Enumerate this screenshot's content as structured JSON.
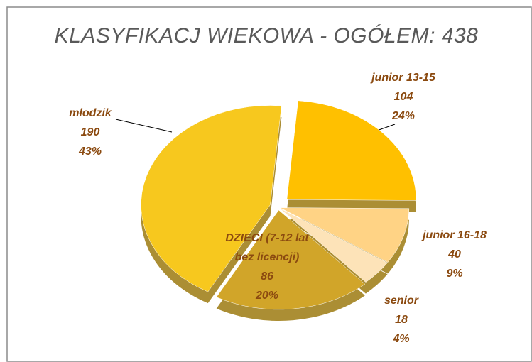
{
  "chart_data": {
    "type": "pie",
    "title": "KLASYFIKACJ WIEKOWA - OGÓŁEM: 438",
    "categories": [
      "junior 13-15",
      "junior 16-18",
      "senior",
      "DZIECI (7-12 lat bez licencji)",
      "młodzik"
    ],
    "values": [
      104,
      40,
      18,
      86,
      190
    ],
    "percent_labels": [
      "24%",
      "9%",
      "4%",
      "20%",
      "43%"
    ],
    "colors": [
      "#FFC000",
      "#FFD385",
      "#FDE3B8",
      "#D1A529",
      "#F7C81E"
    ]
  }
}
